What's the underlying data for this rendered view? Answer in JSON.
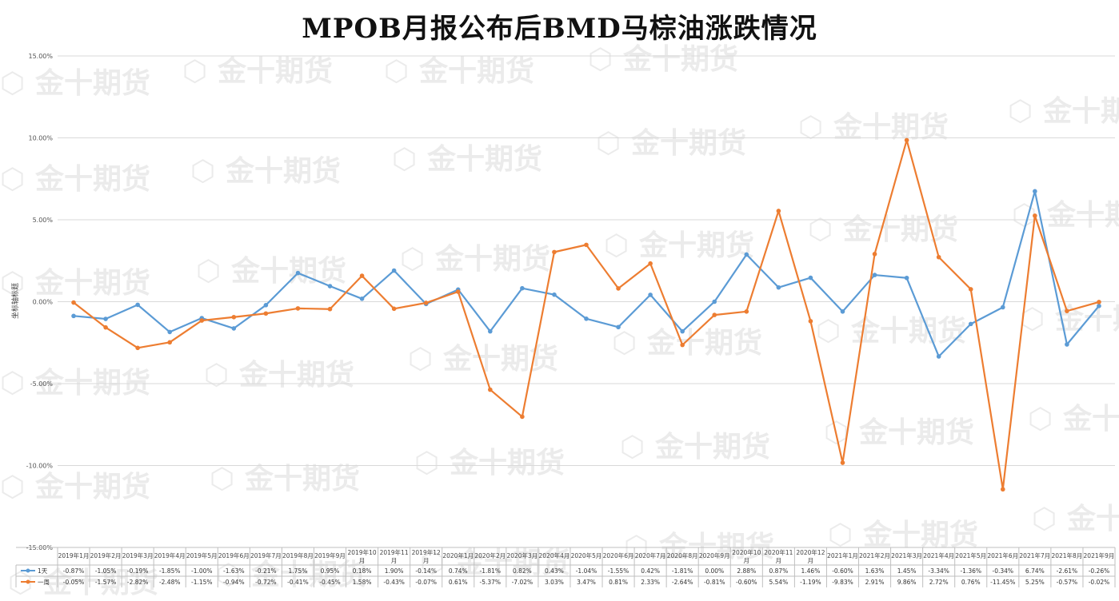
{
  "title": "MPOB月报公布后BMD马棕油涨跌情况",
  "watermark": "金十期货",
  "chart_data": {
    "type": "line",
    "title": "MPOB月报公布后BMD马棕油涨跌情况",
    "ylabel": "坐标轴标题",
    "ylim": [
      -0.15,
      0.15
    ],
    "yticks": [
      "15.00%",
      "10.00%",
      "5.00%",
      "0.00%",
      "-5.00%",
      "-10.00%",
      "-15.00%"
    ],
    "grid": true,
    "categories": [
      [
        "2019年1月"
      ],
      [
        "2019年2月"
      ],
      [
        "2019年3月"
      ],
      [
        "2019年4月"
      ],
      [
        "2019年5月"
      ],
      [
        "2019年6月"
      ],
      [
        "2019年7月"
      ],
      [
        "2019年8月"
      ],
      [
        "2019年9月"
      ],
      [
        "2019年10",
        "月"
      ],
      [
        "2019年11",
        "月"
      ],
      [
        "2019年12",
        "月"
      ],
      [
        "2020年1月"
      ],
      [
        "2020年2月"
      ],
      [
        "2020年3月"
      ],
      [
        "2020年4月"
      ],
      [
        "2020年5月"
      ],
      [
        "2020年6月"
      ],
      [
        "2020年7月"
      ],
      [
        "2020年8月"
      ],
      [
        "2020年9月"
      ],
      [
        "2020年10",
        "月"
      ],
      [
        "2020年11",
        "月"
      ],
      [
        "2020年12",
        "月"
      ],
      [
        "2021年1月"
      ],
      [
        "2021年2月"
      ],
      [
        "2021年3月"
      ],
      [
        "2021年4月"
      ],
      [
        "2021年5月"
      ],
      [
        "2021年6月"
      ],
      [
        "2021年7月"
      ],
      [
        "2021年8月"
      ],
      [
        "2021年9月"
      ]
    ],
    "series": [
      {
        "name": "1天",
        "color": "#5b9bd5",
        "values": [
          -0.87,
          -1.05,
          -0.19,
          -1.85,
          -1.0,
          -1.63,
          -0.21,
          1.75,
          0.95,
          0.18,
          1.9,
          -0.14,
          0.74,
          -1.81,
          0.82,
          0.43,
          -1.04,
          -1.55,
          0.42,
          -1.81,
          0.0,
          2.88,
          0.87,
          1.46,
          -0.6,
          1.63,
          1.45,
          -3.34,
          -1.36,
          -0.34,
          6.74,
          -2.61,
          -0.26
        ],
        "labels": [
          "-0.87%",
          "-1.05%",
          "-0.19%",
          "-1.85%",
          "-1.00%",
          "-1.63%",
          "-0.21%",
          "1.75%",
          "0.95%",
          "0.18%",
          "1.90%",
          "-0.14%",
          "0.74%",
          "-1.81%",
          "0.82%",
          "0.43%",
          "-1.04%",
          "-1.55%",
          "0.42%",
          "-1.81%",
          "0.00%",
          "2.88%",
          "0.87%",
          "1.46%",
          "-0.60%",
          "1.63%",
          "1.45%",
          "-3.34%",
          "-1.36%",
          "-0.34%",
          "6.74%",
          "-2.61%",
          "-0.26%"
        ]
      },
      {
        "name": "一周",
        "color": "#ed7d31",
        "values": [
          -0.05,
          -1.57,
          -2.82,
          -2.48,
          -1.15,
          -0.94,
          -0.72,
          -0.41,
          -0.45,
          1.58,
          -0.43,
          -0.07,
          0.61,
          -5.37,
          -7.02,
          3.03,
          3.47,
          0.81,
          2.33,
          -2.64,
          -0.81,
          -0.6,
          5.54,
          -1.19,
          -9.83,
          2.91,
          9.86,
          2.72,
          0.76,
          -11.45,
          5.25,
          -0.57,
          -0.02
        ],
        "labels": [
          "-0.05%",
          "-1.57%",
          "-2.82%",
          "-2.48%",
          "-1.15%",
          "-0.94%",
          "-0.72%",
          "-0.41%",
          "-0.45%",
          "1.58%",
          "-0.43%",
          "-0.07%",
          "0.61%",
          "-5.37%",
          "-7.02%",
          "3.03%",
          "3.47%",
          "0.81%",
          "2.33%",
          "-2.64%",
          "-0.81%",
          "-0.60%",
          "5.54%",
          "-1.19%",
          "-9.83%",
          "2.91%",
          "9.86%",
          "2.72%",
          "0.76%",
          "-11.45%",
          "5.25%",
          "-0.57%",
          "-0.02%"
        ]
      }
    ]
  }
}
